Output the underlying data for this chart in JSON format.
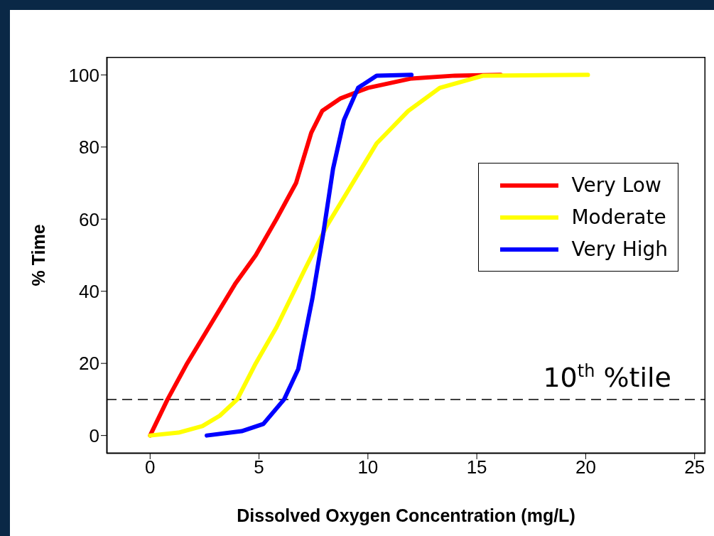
{
  "chart_data": {
    "type": "line",
    "xlabel": "Dissolved Oxygen Concentration (mg/L)",
    "ylabel": "% Time",
    "xlim": [
      -2,
      25.5
    ],
    "ylim": [
      -5,
      105
    ],
    "xticks": [
      0,
      5,
      10,
      15,
      20,
      25
    ],
    "yticks": [
      0,
      20,
      40,
      60,
      80,
      100
    ],
    "grid": false,
    "legend": "right",
    "marker": "none",
    "line_style": "solid",
    "ref_lines": [
      {
        "axis": "y",
        "value": 10,
        "label": "10$^{th}$ %tile",
        "color": "#000000",
        "line_style": "dashed"
      }
    ],
    "series": [
      {
        "name": "Very Low",
        "color": "#ff0000",
        "x": [
          0,
          0.8,
          1.7,
          2.9,
          3.9,
          4.85,
          5.8,
          6.7,
          7.4,
          7.9,
          8.75,
          10,
          12,
          14,
          16.1
        ],
        "values": [
          0,
          10,
          20,
          32,
          42,
          50,
          60,
          70,
          84,
          90,
          93.5,
          96.4,
          99,
          99.8,
          100
        ]
      },
      {
        "name": "Moderate",
        "color": "#ffff00",
        "x": [
          0,
          1.3,
          2.4,
          3.2,
          4,
          4.85,
          5.8,
          7.1,
          8.1,
          9.1,
          10.4,
          11.85,
          13.3,
          15.3,
          20.1
        ],
        "values": [
          0,
          0.8,
          2.6,
          5.5,
          10,
          20,
          30,
          46,
          58,
          68,
          81,
          90,
          96.4,
          99.8,
          100
        ]
      },
      {
        "name": "Very High",
        "color": "#0000ff",
        "x": [
          2.6,
          4.2,
          5.2,
          6.15,
          6.8,
          7.45,
          7.95,
          8.4,
          8.9,
          9.55,
          10.4,
          12
        ],
        "values": [
          0,
          1.2,
          3.2,
          10,
          18.4,
          38,
          56,
          74,
          87.5,
          96.4,
          99.8,
          100
        ]
      }
    ]
  }
}
